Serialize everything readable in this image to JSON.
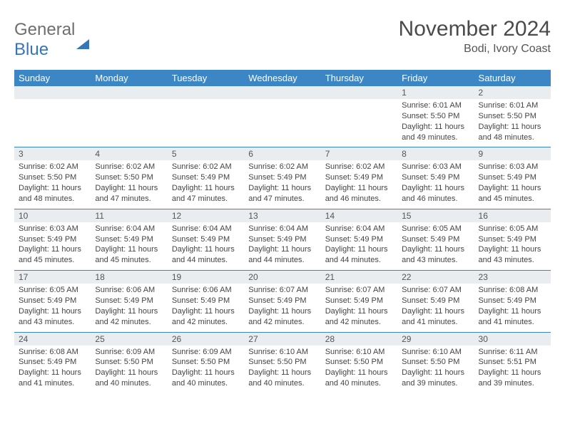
{
  "logo": {
    "word1": "General",
    "word2": "Blue"
  },
  "header": {
    "title": "November 2024",
    "subtitle": "Bodi, Ivory Coast"
  },
  "columns": [
    "Sunday",
    "Monday",
    "Tuesday",
    "Wednesday",
    "Thursday",
    "Friday",
    "Saturday"
  ],
  "colors": {
    "header_bg": "#3d86c6",
    "header_fg": "#ffffff",
    "daynum_bg": "#e9edf0",
    "row_border": "#3d86c6",
    "logo_gray": "#6e6e6e",
    "logo_blue": "#3676b8"
  },
  "layout": {
    "first_weekday_index": 5,
    "num_days": 30,
    "cols": 7,
    "rows": 5
  },
  "days": {
    "1": {
      "sunrise": "Sunrise: 6:01 AM",
      "sunset": "Sunset: 5:50 PM",
      "daylight": "Daylight: 11 hours and 49 minutes."
    },
    "2": {
      "sunrise": "Sunrise: 6:01 AM",
      "sunset": "Sunset: 5:50 PM",
      "daylight": "Daylight: 11 hours and 48 minutes."
    },
    "3": {
      "sunrise": "Sunrise: 6:02 AM",
      "sunset": "Sunset: 5:50 PM",
      "daylight": "Daylight: 11 hours and 48 minutes."
    },
    "4": {
      "sunrise": "Sunrise: 6:02 AM",
      "sunset": "Sunset: 5:50 PM",
      "daylight": "Daylight: 11 hours and 47 minutes."
    },
    "5": {
      "sunrise": "Sunrise: 6:02 AM",
      "sunset": "Sunset: 5:49 PM",
      "daylight": "Daylight: 11 hours and 47 minutes."
    },
    "6": {
      "sunrise": "Sunrise: 6:02 AM",
      "sunset": "Sunset: 5:49 PM",
      "daylight": "Daylight: 11 hours and 47 minutes."
    },
    "7": {
      "sunrise": "Sunrise: 6:02 AM",
      "sunset": "Sunset: 5:49 PM",
      "daylight": "Daylight: 11 hours and 46 minutes."
    },
    "8": {
      "sunrise": "Sunrise: 6:03 AM",
      "sunset": "Sunset: 5:49 PM",
      "daylight": "Daylight: 11 hours and 46 minutes."
    },
    "9": {
      "sunrise": "Sunrise: 6:03 AM",
      "sunset": "Sunset: 5:49 PM",
      "daylight": "Daylight: 11 hours and 45 minutes."
    },
    "10": {
      "sunrise": "Sunrise: 6:03 AM",
      "sunset": "Sunset: 5:49 PM",
      "daylight": "Daylight: 11 hours and 45 minutes."
    },
    "11": {
      "sunrise": "Sunrise: 6:04 AM",
      "sunset": "Sunset: 5:49 PM",
      "daylight": "Daylight: 11 hours and 45 minutes."
    },
    "12": {
      "sunrise": "Sunrise: 6:04 AM",
      "sunset": "Sunset: 5:49 PM",
      "daylight": "Daylight: 11 hours and 44 minutes."
    },
    "13": {
      "sunrise": "Sunrise: 6:04 AM",
      "sunset": "Sunset: 5:49 PM",
      "daylight": "Daylight: 11 hours and 44 minutes."
    },
    "14": {
      "sunrise": "Sunrise: 6:04 AM",
      "sunset": "Sunset: 5:49 PM",
      "daylight": "Daylight: 11 hours and 44 minutes."
    },
    "15": {
      "sunrise": "Sunrise: 6:05 AM",
      "sunset": "Sunset: 5:49 PM",
      "daylight": "Daylight: 11 hours and 43 minutes."
    },
    "16": {
      "sunrise": "Sunrise: 6:05 AM",
      "sunset": "Sunset: 5:49 PM",
      "daylight": "Daylight: 11 hours and 43 minutes."
    },
    "17": {
      "sunrise": "Sunrise: 6:05 AM",
      "sunset": "Sunset: 5:49 PM",
      "daylight": "Daylight: 11 hours and 43 minutes."
    },
    "18": {
      "sunrise": "Sunrise: 6:06 AM",
      "sunset": "Sunset: 5:49 PM",
      "daylight": "Daylight: 11 hours and 42 minutes."
    },
    "19": {
      "sunrise": "Sunrise: 6:06 AM",
      "sunset": "Sunset: 5:49 PM",
      "daylight": "Daylight: 11 hours and 42 minutes."
    },
    "20": {
      "sunrise": "Sunrise: 6:07 AM",
      "sunset": "Sunset: 5:49 PM",
      "daylight": "Daylight: 11 hours and 42 minutes."
    },
    "21": {
      "sunrise": "Sunrise: 6:07 AM",
      "sunset": "Sunset: 5:49 PM",
      "daylight": "Daylight: 11 hours and 42 minutes."
    },
    "22": {
      "sunrise": "Sunrise: 6:07 AM",
      "sunset": "Sunset: 5:49 PM",
      "daylight": "Daylight: 11 hours and 41 minutes."
    },
    "23": {
      "sunrise": "Sunrise: 6:08 AM",
      "sunset": "Sunset: 5:49 PM",
      "daylight": "Daylight: 11 hours and 41 minutes."
    },
    "24": {
      "sunrise": "Sunrise: 6:08 AM",
      "sunset": "Sunset: 5:49 PM",
      "daylight": "Daylight: 11 hours and 41 minutes."
    },
    "25": {
      "sunrise": "Sunrise: 6:09 AM",
      "sunset": "Sunset: 5:50 PM",
      "daylight": "Daylight: 11 hours and 40 minutes."
    },
    "26": {
      "sunrise": "Sunrise: 6:09 AM",
      "sunset": "Sunset: 5:50 PM",
      "daylight": "Daylight: 11 hours and 40 minutes."
    },
    "27": {
      "sunrise": "Sunrise: 6:10 AM",
      "sunset": "Sunset: 5:50 PM",
      "daylight": "Daylight: 11 hours and 40 minutes."
    },
    "28": {
      "sunrise": "Sunrise: 6:10 AM",
      "sunset": "Sunset: 5:50 PM",
      "daylight": "Daylight: 11 hours and 40 minutes."
    },
    "29": {
      "sunrise": "Sunrise: 6:10 AM",
      "sunset": "Sunset: 5:50 PM",
      "daylight": "Daylight: 11 hours and 39 minutes."
    },
    "30": {
      "sunrise": "Sunrise: 6:11 AM",
      "sunset": "Sunset: 5:51 PM",
      "daylight": "Daylight: 11 hours and 39 minutes."
    }
  }
}
